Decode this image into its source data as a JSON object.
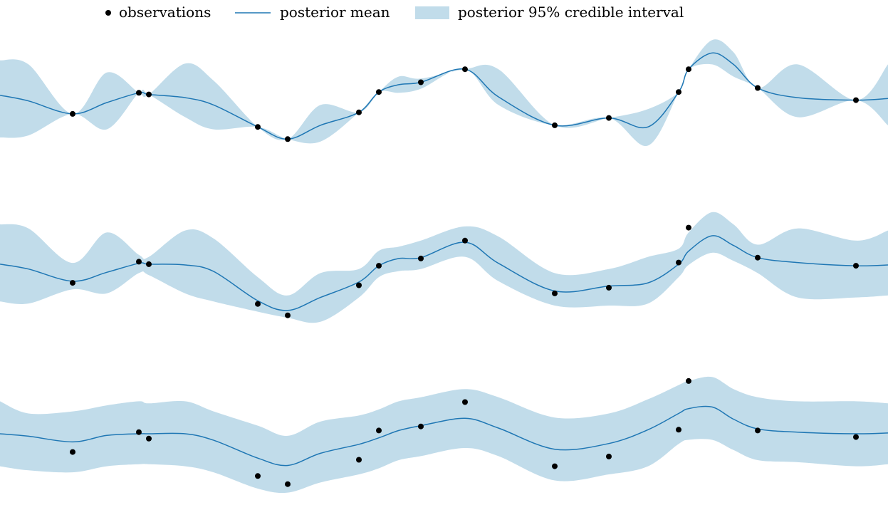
{
  "legend": {
    "observations_label": "observations",
    "mean_label": "posterior mean",
    "band_label": "posterior 95% credible interval"
  },
  "colors": {
    "mean": "#1f77b4",
    "band": "#c1dcea",
    "points": "#000000"
  },
  "chart_data": [
    {
      "type": "line",
      "title": "",
      "xlabel": "",
      "ylabel": "",
      "xlim": [
        0,
        1247
      ],
      "ylim": [
        -2.4,
        2.4
      ],
      "series": [
        {
          "name": "observations",
          "x": [
            102,
            195,
            209,
            362,
            404,
            504,
            532,
            591,
            653,
            779,
            855,
            953,
            967,
            1064,
            1202
          ],
          "y": [
            -0.84,
            0.2,
            0.12,
            -1.48,
            -2.08,
            -0.76,
            0.24,
            0.72,
            1.36,
            -1.4,
            -1.04,
            0.24,
            1.36,
            0.44,
            -0.16
          ]
        },
        {
          "name": "posterior mean",
          "x": [
            0,
            40,
            102,
            150,
            195,
            209,
            260,
            300,
            362,
            404,
            450,
            504,
            532,
            560,
            591,
            653,
            700,
            779,
            855,
            910,
            953,
            967,
            1000,
            1030,
            1064,
            1120,
            1202,
            1247
          ],
          "y": [
            0.08,
            -0.2,
            -0.84,
            -0.28,
            0.2,
            0.12,
            -0.04,
            -0.4,
            -1.48,
            -2.08,
            -1.4,
            -0.76,
            0.24,
            0.6,
            0.72,
            1.36,
            0.0,
            -1.4,
            -1.04,
            -1.48,
            0.24,
            1.36,
            2.16,
            1.6,
            0.44,
            -0.04,
            -0.16,
            -0.08
          ]
        },
        {
          "name": "posterior 95% credible interval",
          "x": [
            0,
            40,
            102,
            150,
            195,
            209,
            260,
            300,
            362,
            404,
            450,
            504,
            532,
            560,
            591,
            653,
            700,
            779,
            855,
            910,
            953,
            967,
            1000,
            1030,
            1064,
            1120,
            1202,
            1247
          ],
          "lower": [
            -2.0,
            -1.9,
            -0.84,
            -1.6,
            0.2,
            0.12,
            -1.0,
            -1.6,
            -1.48,
            -2.08,
            -2.2,
            -0.76,
            0.24,
            0.2,
            0.4,
            1.36,
            -0.4,
            -1.4,
            -1.04,
            -2.4,
            0.24,
            1.36,
            1.6,
            1.0,
            0.44,
            -1.0,
            -0.16,
            -1.4
          ],
          "upper": [
            1.8,
            1.6,
            -0.84,
            1.2,
            0.2,
            0.12,
            1.64,
            0.8,
            -1.48,
            -2.08,
            -0.4,
            -0.76,
            0.24,
            1.0,
            0.9,
            1.36,
            1.36,
            -1.4,
            -1.04,
            -0.6,
            0.24,
            1.36,
            2.8,
            2.2,
            0.44,
            1.6,
            -0.16,
            1.6
          ]
        }
      ]
    },
    {
      "type": "line",
      "title": "",
      "xlabel": "",
      "ylabel": "",
      "xlim": [
        0,
        1247
      ],
      "ylim": [
        -2.4,
        2.4
      ],
      "series": [
        {
          "name": "observations",
          "x": [
            102,
            195,
            209,
            362,
            404,
            504,
            532,
            591,
            653,
            779,
            855,
            953,
            967,
            1064,
            1202
          ],
          "y": [
            -0.88,
            0.16,
            0.04,
            -1.92,
            -2.48,
            -1.0,
            -0.04,
            0.32,
            1.2,
            -1.4,
            -1.12,
            0.12,
            1.84,
            0.36,
            -0.04
          ]
        },
        {
          "name": "posterior mean",
          "x": [
            0,
            40,
            102,
            150,
            195,
            209,
            260,
            300,
            362,
            404,
            450,
            504,
            532,
            560,
            591,
            653,
            700,
            779,
            855,
            910,
            953,
            967,
            1000,
            1030,
            1064,
            1120,
            1202,
            1247
          ],
          "y": [
            0.04,
            -0.2,
            -0.8,
            -0.36,
            0.08,
            0.04,
            0.0,
            -0.32,
            -1.76,
            -2.24,
            -1.6,
            -0.84,
            -0.04,
            0.32,
            0.36,
            1.12,
            0.08,
            -1.28,
            -1.04,
            -0.88,
            0.04,
            0.68,
            1.44,
            0.96,
            0.36,
            0.12,
            -0.04,
            0.0
          ]
        },
        {
          "name": "posterior 95% credible interval",
          "x": [
            0,
            40,
            102,
            150,
            195,
            209,
            260,
            300,
            362,
            404,
            450,
            504,
            532,
            560,
            591,
            653,
            700,
            779,
            855,
            910,
            953,
            967,
            1000,
            1030,
            1064,
            1120,
            1202,
            1247
          ],
          "lower": [
            -1.8,
            -1.9,
            -1.2,
            -1.4,
            -0.4,
            -0.5,
            -1.4,
            -1.8,
            -2.3,
            -2.6,
            -2.8,
            -1.6,
            -0.6,
            -0.3,
            -0.2,
            0.4,
            -0.8,
            -2.0,
            -2.0,
            -1.9,
            -0.6,
            0.0,
            0.6,
            0.2,
            -0.4,
            -1.6,
            -1.6,
            -1.5
          ],
          "upper": [
            2.0,
            1.8,
            0.1,
            1.6,
            0.5,
            0.4,
            1.7,
            1.3,
            -0.6,
            -1.5,
            -0.4,
            -0.2,
            0.7,
            0.9,
            1.2,
            1.9,
            1.4,
            -0.4,
            -0.2,
            0.4,
            0.8,
            1.6,
            2.6,
            2.0,
            1.0,
            1.8,
            1.2,
            1.7
          ]
        }
      ]
    },
    {
      "type": "line",
      "title": "",
      "xlabel": "",
      "ylabel": "",
      "xlim": [
        0,
        1247
      ],
      "ylim": [
        -2.4,
        2.4
      ],
      "series": [
        {
          "name": "observations",
          "x": [
            102,
            195,
            209,
            362,
            404,
            504,
            532,
            591,
            653,
            779,
            855,
            953,
            967,
            1064,
            1202
          ],
          "y": [
            -0.9,
            0.08,
            -0.24,
            -2.08,
            -2.48,
            -1.28,
            0.16,
            0.36,
            1.56,
            -1.6,
            -1.12,
            0.2,
            2.6,
            0.16,
            -0.16
          ]
        },
        {
          "name": "posterior mean",
          "x": [
            0,
            40,
            102,
            150,
            195,
            209,
            260,
            300,
            362,
            404,
            450,
            504,
            532,
            560,
            591,
            653,
            700,
            779,
            855,
            910,
            953,
            967,
            1000,
            1030,
            1064,
            1120,
            1202,
            1247
          ],
          "y": [
            0.0,
            -0.12,
            -0.4,
            -0.08,
            0.0,
            0.0,
            0.0,
            -0.32,
            -1.2,
            -1.56,
            -0.96,
            -0.52,
            -0.2,
            0.16,
            0.4,
            0.76,
            0.28,
            -0.76,
            -0.48,
            0.2,
            1.0,
            1.24,
            1.32,
            0.72,
            0.24,
            0.08,
            0.0,
            0.04
          ]
        },
        {
          "name": "posterior 95% credible interval",
          "x": [
            0,
            40,
            102,
            150,
            195,
            209,
            260,
            300,
            362,
            404,
            450,
            504,
            532,
            560,
            591,
            653,
            700,
            779,
            855,
            910,
            953,
            967,
            1000,
            1030,
            1064,
            1120,
            1202,
            1247
          ],
          "lower": [
            -1.6,
            -1.8,
            -1.9,
            -1.6,
            -1.5,
            -1.5,
            -1.6,
            -1.9,
            -2.7,
            -2.9,
            -2.4,
            -2.0,
            -1.7,
            -1.3,
            -1.1,
            -0.7,
            -1.1,
            -2.3,
            -2.0,
            -1.6,
            -0.5,
            -0.3,
            -0.3,
            -0.8,
            -1.3,
            -1.4,
            -1.6,
            -1.5
          ],
          "upper": [
            1.6,
            1.0,
            1.1,
            1.4,
            1.6,
            1.5,
            1.6,
            1.1,
            0.4,
            -0.1,
            0.6,
            0.9,
            1.2,
            1.6,
            1.8,
            2.2,
            1.8,
            0.8,
            1.0,
            1.7,
            2.4,
            2.6,
            2.8,
            2.2,
            1.8,
            1.6,
            1.6,
            1.5
          ]
        }
      ]
    }
  ]
}
